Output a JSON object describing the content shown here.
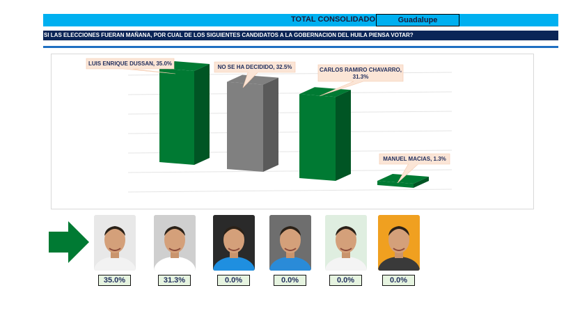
{
  "header": {
    "title": "TOTAL CONSOLIDADO",
    "location": "Guadalupe",
    "question": "SI LAS ELECCIONES FUERAN MAÑANA, POR CUAL DE LOS SIGUIENTES CANDIDATOS A LA GOBERNACION DEL HUILA PIENSA VOTAR?"
  },
  "colors": {
    "header_bar": "#00b0f0",
    "question_bar": "#0b2557",
    "rule": "#1f6fc2",
    "bar_green": "#007a33",
    "bar_gray": "#808080",
    "callout_fill": "#fbe5d6",
    "pct_box": "#e6f4e0",
    "arrow": "#007a33"
  },
  "chart_data": {
    "type": "bar",
    "categories": [
      "LUIS ENRIQUE DUSSAN",
      "NO SE HA DECIDIDO",
      "CARLOS RAMIRO CHAVARRO",
      "MANUEL MACIAS"
    ],
    "values": [
      35.0,
      32.5,
      31.3,
      1.3
    ],
    "data_labels": [
      "LUIS ENRIQUE DUSSAN, 35.0%",
      "NO SE HA DECIDIDO, 32.5%",
      "CARLOS RAMIRO CHAVARRO,|31.3%",
      "MANUEL MACIAS, 1.3%"
    ],
    "bar_colors": [
      "#007a33",
      "#808080",
      "#007a33",
      "#007a33"
    ],
    "ylim": [
      0,
      35
    ],
    "grid": true,
    "legend": "none",
    "title": "",
    "xlabel": "",
    "ylabel": ""
  },
  "candidates": [
    {
      "photo_icon": "candidate-photo-icon",
      "percent": "35.0%",
      "bg": "#e8e8e8",
      "shirt": "#f2f2f2"
    },
    {
      "photo_icon": "candidate-photo-icon",
      "percent": "31.3%",
      "bg": "#cfcfcf",
      "shirt": "#ffffff"
    },
    {
      "photo_icon": "candidate-photo-icon",
      "percent": "0.0%",
      "bg": "#2a2a2a",
      "shirt": "#1f8fe0"
    },
    {
      "photo_icon": "candidate-photo-icon",
      "percent": "0.0%",
      "bg": "#6e6e6e",
      "shirt": "#2a8bd8"
    },
    {
      "photo_icon": "candidate-photo-icon",
      "percent": "0.0%",
      "bg": "#dfeee0",
      "shirt": "#f4f4f4"
    },
    {
      "photo_icon": "candidate-photo-icon",
      "percent": "0.0%",
      "bg": "#f0a020",
      "shirt": "#3a3a3a"
    }
  ]
}
